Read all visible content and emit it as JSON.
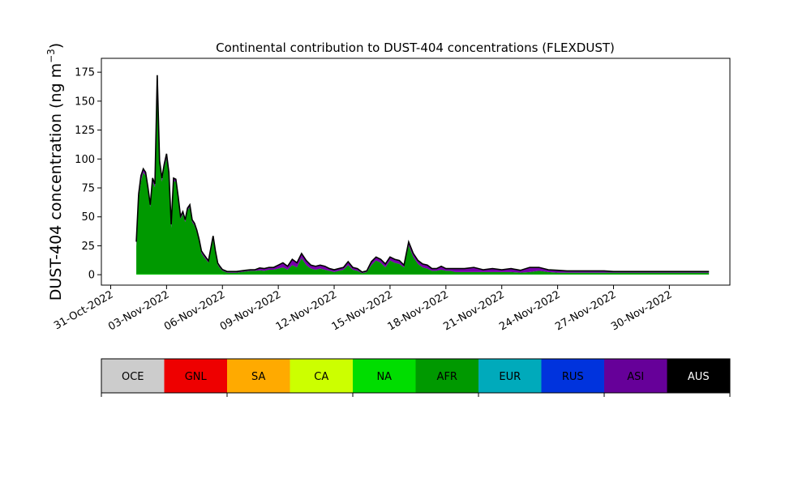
{
  "chart_data": {
    "type": "area",
    "title": "Continental contribution to DUST-404 concentrations (FLEXDUST)",
    "xlabel": "",
    "ylabel_main": "DUST-404 concentration (ng m",
    "ylabel_sup": "−3",
    "ylabel_close": ")",
    "xlim": [
      "2022-10-30T12:00",
      "2022-12-03T06:00"
    ],
    "ylim": [
      -9,
      187
    ],
    "yticks": [
      0,
      25,
      50,
      75,
      100,
      125,
      150,
      175
    ],
    "xticks": [
      "31-Oct-2022",
      "03-Nov-2022",
      "06-Nov-2022",
      "09-Nov-2022",
      "12-Nov-2022",
      "15-Nov-2022",
      "18-Nov-2022",
      "21-Nov-2022",
      "24-Nov-2022",
      "27-Nov-2022",
      "30-Nov-2022"
    ],
    "xtick_dates": [
      "2022-10-31",
      "2022-11-03",
      "2022-11-06",
      "2022-11-09",
      "2022-11-12",
      "2022-11-15",
      "2022-11-18",
      "2022-11-21",
      "2022-11-24",
      "2022-11-27",
      "2022-11-30"
    ],
    "grid": false,
    "series_stack_order": [
      "NA",
      "AFR",
      "ASI",
      "AUS"
    ],
    "x": [
      "2022-11-01T09:00",
      "2022-11-01T12:00",
      "2022-11-01T15:00",
      "2022-11-01T18:00",
      "2022-11-01T21:00",
      "2022-11-02T00:00",
      "2022-11-02T03:00",
      "2022-11-02T06:00",
      "2022-11-02T09:00",
      "2022-11-02T12:00",
      "2022-11-02T15:00",
      "2022-11-02T18:00",
      "2022-11-02T21:00",
      "2022-11-03T00:00",
      "2022-11-03T03:00",
      "2022-11-03T06:00",
      "2022-11-03T09:00",
      "2022-11-03T12:00",
      "2022-11-03T15:00",
      "2022-11-03T18:00",
      "2022-11-03T21:00",
      "2022-11-04T00:00",
      "2022-11-04T03:00",
      "2022-11-04T06:00",
      "2022-11-04T09:00",
      "2022-11-04T12:00",
      "2022-11-04T15:00",
      "2022-11-04T18:00",
      "2022-11-04T21:00",
      "2022-11-05T00:00",
      "2022-11-05T06:00",
      "2022-11-05T12:00",
      "2022-11-05T15:00",
      "2022-11-05T18:00",
      "2022-11-05T21:00",
      "2022-11-06T00:00",
      "2022-11-06T06:00",
      "2022-11-06T12:00",
      "2022-11-06T18:00",
      "2022-11-07T00:00",
      "2022-11-07T06:00",
      "2022-11-07T12:00",
      "2022-11-07T18:00",
      "2022-11-08T00:00",
      "2022-11-08T06:00",
      "2022-11-08T12:00",
      "2022-11-08T18:00",
      "2022-11-09T00:00",
      "2022-11-09T06:00",
      "2022-11-09T12:00",
      "2022-11-09T18:00",
      "2022-11-10T00:00",
      "2022-11-10T06:00",
      "2022-11-10T12:00",
      "2022-11-10T18:00",
      "2022-11-11T00:00",
      "2022-11-11T06:00",
      "2022-11-11T12:00",
      "2022-11-11T18:00",
      "2022-11-12T00:00",
      "2022-11-12T06:00",
      "2022-11-12T12:00",
      "2022-11-12T18:00",
      "2022-11-13T00:00",
      "2022-11-13T06:00",
      "2022-11-13T12:00",
      "2022-11-13T18:00",
      "2022-11-14T00:00",
      "2022-11-14T06:00",
      "2022-11-14T12:00",
      "2022-11-14T18:00",
      "2022-11-15T00:00",
      "2022-11-15T06:00",
      "2022-11-15T12:00",
      "2022-11-15T18:00",
      "2022-11-16T00:00",
      "2022-11-16T06:00",
      "2022-11-16T12:00",
      "2022-11-16T18:00",
      "2022-11-17T00:00",
      "2022-11-17T06:00",
      "2022-11-17T12:00",
      "2022-11-17T18:00",
      "2022-11-18T00:00",
      "2022-11-18T06:00",
      "2022-11-18T12:00",
      "2022-11-18T18:00",
      "2022-11-19T00:00",
      "2022-11-19T12:00",
      "2022-11-20T00:00",
      "2022-11-20T12:00",
      "2022-11-21T00:00",
      "2022-11-21T12:00",
      "2022-11-22T00:00",
      "2022-11-22T12:00",
      "2022-11-23T00:00",
      "2022-11-23T12:00",
      "2022-11-24T00:00",
      "2022-11-24T12:00",
      "2022-11-25T00:00",
      "2022-11-25T12:00",
      "2022-11-26T00:00",
      "2022-11-26T12:00",
      "2022-11-27T00:00",
      "2022-11-27T12:00",
      "2022-11-28T00:00",
      "2022-11-28T12:00",
      "2022-11-29T00:00",
      "2022-11-29T12:00",
      "2022-11-30T00:00",
      "2022-11-30T12:00",
      "2022-12-01T00:00",
      "2022-12-01T12:00",
      "2022-12-02T00:00",
      "2022-12-02T03:00"
    ],
    "series": [
      {
        "name": "NA",
        "color": "#00dd00",
        "values": [
          0.5,
          0.5,
          0.5,
          0.5,
          0.5,
          0.5,
          0.5,
          0.5,
          0.5,
          0.5,
          0.5,
          0.5,
          0.5,
          0.5,
          0.5,
          0.5,
          0.5,
          0.5,
          0.5,
          0.5,
          0.5,
          0.5,
          0.5,
          0.5,
          0.5,
          0.5,
          0.5,
          0.5,
          0.5,
          0.5,
          0.5,
          0.5,
          0.5,
          0.5,
          0.5,
          0.5,
          0.3,
          0.3,
          0.3,
          0.3,
          0.3,
          0.3,
          0.3,
          0.3,
          0.3,
          0.3,
          0.3,
          0.3,
          0.3,
          0.3,
          0.3,
          0.3,
          0.3,
          0.3,
          0.3,
          0.3,
          0.3,
          0.3,
          0.3,
          0.3,
          0.3,
          0.3,
          0.3,
          0.3,
          0.3,
          0.3,
          0.3,
          0.3,
          0.3,
          0.3,
          0.3,
          0.3,
          0.3,
          0.3,
          0.3,
          0.3,
          0.3,
          0.3,
          0.3,
          0.3,
          0.3,
          0.3,
          0.3,
          0.3,
          0.3,
          0.3,
          0.3,
          0.3,
          0.3,
          0.3,
          0.3,
          0.3,
          0.3,
          0.3,
          0.3,
          0.3,
          0.3,
          0.3,
          0.3,
          0.3,
          0.3,
          0.3,
          0.3,
          0.3,
          0.3,
          0.3,
          0.3,
          0.3,
          0.3,
          0.3,
          0.3,
          0.3,
          0.3,
          0.3,
          0.3
        ]
      },
      {
        "name": "AFR",
        "color": "#009900",
        "values": [
          24,
          65,
          80,
          88,
          85,
          72,
          58,
          80,
          75,
          160,
          95,
          80,
          92,
          100,
          85,
          40,
          80,
          80,
          65,
          48,
          52,
          45,
          55,
          58,
          45,
          42,
          36,
          28,
          18,
          15,
          10,
          30,
          18,
          8,
          5,
          3,
          1.5,
          1.5,
          1.5,
          2,
          2.5,
          3,
          3,
          3.5,
          3,
          4,
          4,
          5,
          6,
          4,
          8,
          6,
          14,
          8,
          5,
          4,
          5,
          4,
          3,
          2,
          3,
          4,
          8,
          4,
          3,
          1,
          2,
          8,
          12,
          10,
          6,
          12,
          10,
          9,
          6,
          25,
          15,
          9,
          6,
          5,
          3,
          3,
          4,
          3,
          3,
          2,
          2,
          2,
          2,
          2,
          2,
          2,
          2,
          1.5,
          2,
          3,
          2,
          1.5,
          1.5,
          1.5,
          1.5,
          1.5,
          1.5,
          1.5,
          1.5,
          1.5,
          1.5,
          1.5,
          1.5,
          1.5,
          1.5,
          1.5,
          1.5,
          1.5,
          1.5
        ]
      },
      {
        "name": "ASI",
        "color": "#7700aa",
        "values": [
          4,
          4,
          5,
          3,
          3,
          3,
          2,
          3,
          3,
          12,
          3,
          3,
          3,
          4,
          3,
          3,
          3,
          2,
          2,
          2,
          2,
          2,
          2,
          2,
          2,
          2,
          2,
          2,
          2,
          2,
          1.5,
          3,
          2,
          1.5,
          1.5,
          1,
          1,
          1,
          1,
          1,
          1,
          1,
          1,
          2,
          2,
          2,
          2,
          3,
          4,
          3,
          5,
          4,
          4,
          4,
          3,
          3,
          3,
          3,
          2,
          2,
          2,
          2,
          3,
          2,
          2,
          1,
          1,
          3,
          3,
          3,
          3,
          3,
          3,
          3,
          2,
          3,
          3,
          3,
          3,
          3,
          2,
          2,
          3,
          2,
          2,
          3,
          3,
          3,
          4,
          2,
          3,
          2,
          3,
          2,
          4,
          3,
          2,
          2,
          1.5,
          1.5,
          1.5,
          1.5,
          1.5,
          1,
          1,
          1,
          1,
          1,
          1,
          1,
          1,
          1,
          1,
          1,
          1
        ]
      },
      {
        "name": "AUS",
        "color": "#000000",
        "values": [
          0,
          0,
          0,
          0,
          0,
          0,
          0,
          0,
          0,
          0,
          0,
          0,
          0,
          0,
          0,
          0,
          0,
          0,
          0,
          0,
          0,
          0,
          0,
          0,
          0,
          0,
          0,
          0,
          0,
          0,
          0,
          0,
          0,
          0,
          0,
          0,
          0,
          0,
          0,
          0,
          0,
          0,
          0,
          0,
          0,
          0,
          0,
          0,
          0,
          0,
          0,
          0,
          0,
          0,
          0,
          0,
          0,
          0,
          0,
          0,
          0,
          0,
          0,
          0,
          0,
          0,
          0,
          0,
          0,
          0,
          0,
          0,
          0,
          0,
          0,
          0,
          0,
          0,
          0,
          0,
          0,
          0,
          0,
          0,
          0,
          0,
          0,
          0,
          0,
          0,
          0,
          0,
          0,
          0,
          0,
          0,
          0,
          0,
          0,
          0,
          0,
          0,
          0,
          0,
          0,
          0,
          0,
          0,
          0,
          0,
          0,
          0,
          0,
          0,
          0
        ]
      }
    ],
    "total": [
      28.5,
      69.5,
      85.5,
      91.5,
      88.5,
      75.5,
      60.5,
      83.5,
      78.5,
      172.5,
      98.5,
      83.5,
      95.5,
      104.5,
      88.5,
      43.5,
      83.5,
      82.5,
      67.5,
      50.5,
      54.5,
      47.5,
      57.5,
      60.5,
      47.5,
      44.5,
      38.5,
      30.5,
      20.5,
      17.5,
      12,
      33.5,
      20.5,
      10,
      7,
      4.5,
      2.8,
      2.8,
      2.8,
      3.3,
      3.8,
      4.3,
      4.3,
      5.8,
      5.3,
      6.3,
      6.3,
      8.3,
      10.3,
      7.3,
      13.3,
      10.3,
      18.3,
      12.3,
      8.3,
      7.3,
      8.3,
      7.3,
      5.3,
      4.3,
      5.3,
      6.3,
      11.3,
      6.3,
      5.3,
      2.3,
      3.3,
      11.3,
      15.3,
      13.3,
      9.3,
      15.3,
      13.3,
      12.3,
      8.3,
      28.3,
      18.3,
      12.3,
      9.3,
      8.3,
      5.3,
      5.3,
      7.3,
      5.3,
      5.3,
      5.3,
      5.3,
      5.3,
      6.3,
      4.3,
      5.3,
      4.3,
      5.3,
      3.8,
      6.3,
      6.3,
      4.3,
      3.8,
      3.3,
      3.3,
      3.3,
      3.3,
      3.3,
      2.8,
      2.8,
      2.8,
      2.8,
      2.8,
      2.8,
      2.8,
      2.8,
      2.8,
      2.8,
      2.8,
      2.8
    ]
  },
  "legend": {
    "placement": "below",
    "items": [
      {
        "label": "OCE",
        "color": "#cccccc",
        "text_color": "#000000"
      },
      {
        "label": "GNL",
        "color": "#ee0000",
        "text_color": "#000000"
      },
      {
        "label": "SA",
        "color": "#ffaa00",
        "text_color": "#000000"
      },
      {
        "label": "CA",
        "color": "#ccff00",
        "text_color": "#000000"
      },
      {
        "label": "NA",
        "color": "#00dd00",
        "text_color": "#000000"
      },
      {
        "label": "AFR",
        "color": "#009900",
        "text_color": "#000000"
      },
      {
        "label": "EUR",
        "color": "#00aabb",
        "text_color": "#000000"
      },
      {
        "label": "RUS",
        "color": "#0033dd",
        "text_color": "#000000"
      },
      {
        "label": "ASI",
        "color": "#660099",
        "text_color": "#000000"
      },
      {
        "label": "AUS",
        "color": "#000000",
        "text_color": "#ffffff"
      }
    ]
  }
}
